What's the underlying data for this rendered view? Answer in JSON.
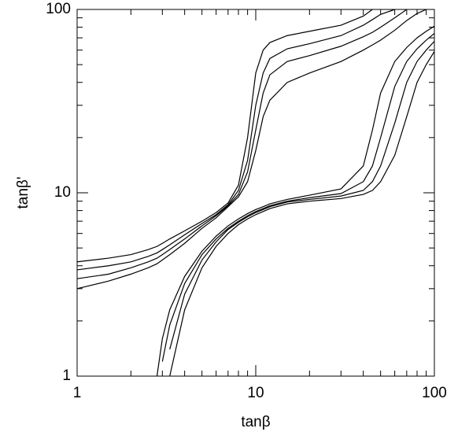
{
  "chart_data": {
    "type": "line",
    "xlabel": "tanβ",
    "ylabel": "tanβ'",
    "xscale": "log",
    "yscale": "log",
    "xlim": [
      1,
      100
    ],
    "ylim": [
      1,
      100
    ],
    "xticks": [
      1,
      10,
      100
    ],
    "yticks": [
      1,
      10,
      100
    ],
    "grid": false,
    "x": [
      1,
      1.5,
      2,
      2.5,
      2.8,
      3,
      3.3,
      4,
      5,
      6,
      7,
      8,
      9,
      10,
      11,
      12,
      15,
      20,
      30,
      40,
      45,
      50,
      60,
      70,
      80,
      90,
      100
    ],
    "series": [
      {
        "color": "#000000",
        "values": [
          4.2,
          4.4,
          4.6,
          4.9,
          5.1,
          5.3,
          5.6,
          6.2,
          7,
          7.8,
          8.8,
          11,
          20,
          45,
          60,
          66,
          72,
          76,
          82,
          92,
          100,
          null,
          null,
          null,
          null,
          null,
          null
        ]
      },
      {
        "color": "#000000",
        "values": [
          3.8,
          4.0,
          4.2,
          4.5,
          4.7,
          4.9,
          5.2,
          5.9,
          6.8,
          7.6,
          8.6,
          10.3,
          15,
          30,
          45,
          54,
          61,
          65,
          72,
          82,
          88,
          94,
          100,
          null,
          null,
          null,
          null
        ]
      },
      {
        "color": "#000000",
        "values": [
          3.4,
          3.6,
          3.9,
          4.2,
          4.4,
          4.6,
          4.9,
          5.6,
          6.6,
          7.5,
          8.5,
          9.8,
          13,
          22,
          35,
          44,
          52,
          56,
          63,
          71,
          75,
          80,
          90,
          100,
          null,
          null,
          null
        ]
      },
      {
        "color": "#000000",
        "values": [
          3.0,
          3.3,
          3.6,
          3.9,
          4.1,
          4.3,
          4.6,
          5.3,
          6.4,
          7.3,
          8.4,
          9.5,
          11.5,
          17,
          26,
          32,
          40,
          45,
          52,
          60,
          64,
          68,
          77,
          87,
          95,
          100,
          null
        ]
      },
      {
        "color": "#000000",
        "values": [
          null,
          null,
          null,
          null,
          1.0,
          1.6,
          2.3,
          3.5,
          4.8,
          5.8,
          6.6,
          7.2,
          7.7,
          8.1,
          8.4,
          8.7,
          9.2,
          9.7,
          10.5,
          14,
          22,
          35,
          52,
          62,
          70,
          76,
          81
        ]
      },
      {
        "color": "#000000",
        "values": [
          null,
          null,
          null,
          null,
          null,
          1.2,
          1.9,
          3.2,
          4.6,
          5.6,
          6.4,
          7.0,
          7.5,
          7.9,
          8.2,
          8.5,
          9.0,
          9.4,
          9.9,
          11.5,
          14,
          20,
          38,
          52,
          61,
          68,
          74
        ]
      },
      {
        "color": "#000000",
        "values": [
          null,
          null,
          null,
          null,
          null,
          null,
          1.4,
          2.8,
          4.3,
          5.4,
          6.3,
          6.9,
          7.4,
          7.8,
          8.1,
          8.4,
          8.9,
          9.2,
          9.6,
          10.3,
          11.5,
          14,
          24,
          40,
          52,
          60,
          67
        ]
      },
      {
        "color": "#000000",
        "values": [
          null,
          null,
          null,
          null,
          null,
          null,
          1.0,
          2.3,
          3.9,
          5.1,
          6.0,
          6.7,
          7.2,
          7.6,
          7.9,
          8.2,
          8.7,
          9.0,
          9.3,
          9.8,
          10.3,
          11.5,
          16,
          26,
          40,
          50,
          59
        ]
      }
    ]
  }
}
